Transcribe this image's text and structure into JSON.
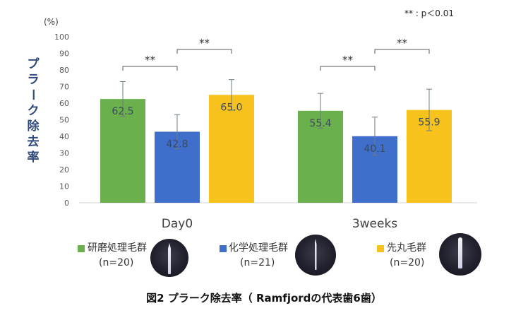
{
  "chart_data": {
    "type": "bar",
    "unit_label": "(%)",
    "ylabel": "プラーク除去率",
    "ylim": [
      0,
      100
    ],
    "ytick_step": 10,
    "grid": false,
    "significance_note": "** : p＜0.01",
    "categories": [
      "Day0",
      "3weeks"
    ],
    "series": [
      {
        "name": "研磨処理毛群",
        "color": "#6ab04c",
        "values": [
          62.5,
          55.4
        ],
        "error": [
          10.5,
          10.5
        ]
      },
      {
        "name": "化学処理毛群",
        "color": "#3f6fca",
        "values": [
          42.8,
          40.1
        ],
        "error": [
          10.3,
          11.5
        ]
      },
      {
        "name": "先丸毛群",
        "color": "#f7c21c",
        "values": [
          65.0,
          55.9
        ],
        "error": [
          9.2,
          12.5
        ]
      }
    ],
    "value_labels": [
      [
        "62.5",
        "55.4"
      ],
      [
        "42.8",
        "40.1"
      ],
      [
        "65.0",
        "55.9"
      ]
    ],
    "significance_brackets": [
      {
        "category": 0,
        "from_series": 0,
        "to_series": 1,
        "label": "**"
      },
      {
        "category": 0,
        "from_series": 1,
        "to_series": 2,
        "label": "**"
      },
      {
        "category": 1,
        "from_series": 0,
        "to_series": 1,
        "label": "**"
      },
      {
        "category": 1,
        "from_series": 1,
        "to_series": 2,
        "label": "**"
      }
    ]
  },
  "legend": [
    {
      "label": "研磨処理毛群",
      "n": "(n=20)",
      "color": "#6ab04c",
      "icon": "pointed-bristle-photo"
    },
    {
      "label": "化学処理毛群",
      "n": "(n=21)",
      "color": "#3f6fca",
      "icon": "fine-bristle-photo"
    },
    {
      "label": "先丸毛群",
      "n": "(n=20)",
      "color": "#f7c21c",
      "icon": "round-tip-bristle-photo"
    }
  ],
  "caption": "図2  プラーク除去率（ Ramfjordの代表歯6歯）"
}
